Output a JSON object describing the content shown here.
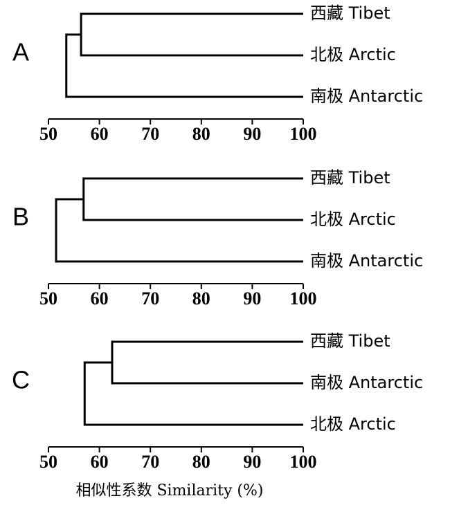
{
  "chart_data": [
    {
      "type": "dendrogram",
      "panel": "A",
      "leaves": [
        "西藏 Tibet",
        "北极 Arctic",
        "南极 Antarctic"
      ],
      "values": [
        56.4,
        53.5
      ],
      "xlim": [
        50,
        100
      ],
      "xticks": [
        50,
        60,
        70,
        80,
        90,
        100
      ],
      "color": "#000000"
    },
    {
      "type": "dendrogram",
      "panel": "B",
      "leaves": [
        "西藏 Tibet",
        "北极 Arctic",
        "南极 Antarctic"
      ],
      "values": [
        56.9,
        51.5
      ],
      "xlim": [
        50,
        100
      ],
      "xticks": [
        50,
        60,
        70,
        80,
        90,
        100
      ],
      "color": "#000000"
    },
    {
      "type": "dendrogram",
      "panel": "C",
      "leaves": [
        "西藏 Tibet",
        "南极 Antarctic",
        "北极 Arctic"
      ],
      "values": [
        62.5,
        57.1
      ],
      "xlim": [
        50,
        100
      ],
      "xticks": [
        50,
        60,
        70,
        80,
        90,
        100
      ],
      "color": "#000000",
      "xlabel": "相似性系数  Similarity (%)"
    }
  ]
}
